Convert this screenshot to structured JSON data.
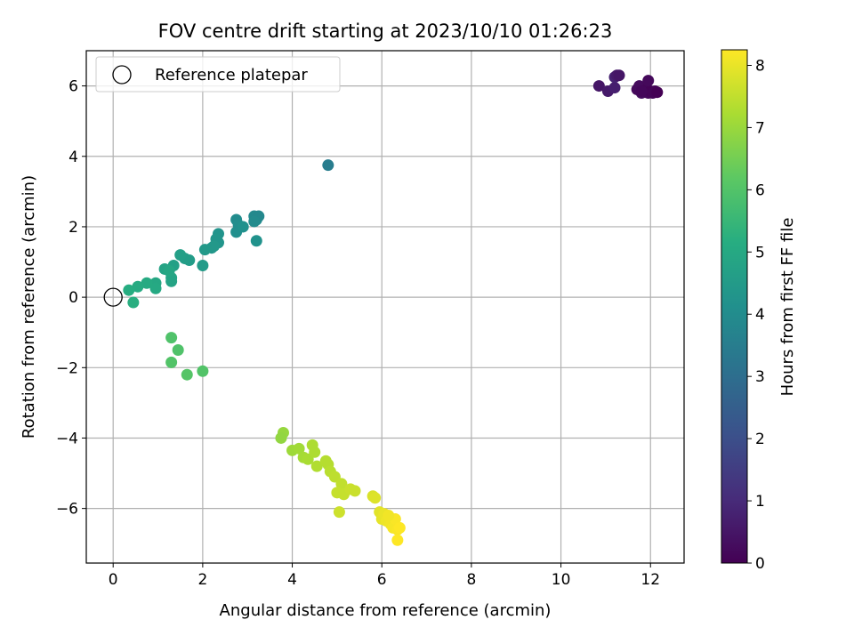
{
  "chart_data": {
    "type": "scatter",
    "title": "FOV centre drift starting at 2023/10/10 01:26:23",
    "xlabel": "Angular distance from reference (arcmin)",
    "ylabel": "Rotation from reference (arcmin)",
    "xlim": [
      -0.6,
      12.75
    ],
    "ylim": [
      -7.55,
      7.0
    ],
    "xticks": [
      0,
      2,
      4,
      6,
      8,
      10,
      12
    ],
    "yticks": [
      -6,
      -4,
      -2,
      0,
      2,
      4,
      6
    ],
    "grid": true,
    "legend": {
      "position": "top-left",
      "entries": [
        "Reference platepar"
      ]
    },
    "reference_point": {
      "x": 0,
      "y": 0
    },
    "colorbar": {
      "label": "Hours from first FF file",
      "range": [
        0,
        8.25
      ],
      "ticks": [
        0,
        1,
        2,
        3,
        4,
        5,
        6,
        7,
        8
      ],
      "colormap": "viridis"
    },
    "series": [
      {
        "x": [
          10.85,
          11.05,
          11.2,
          11.2,
          11.25,
          11.3,
          11.7,
          11.75,
          11.8,
          11.85,
          11.9,
          11.95,
          12.0,
          12.05,
          12.1,
          12.15,
          11.8,
          11.95,
          4.8,
          2.75,
          2.8,
          2.75,
          2.9,
          3.15,
          3.2,
          3.25,
          3.2,
          3.15,
          2.35,
          2.3,
          2.2,
          2.35,
          2.25,
          2.05,
          2.0,
          1.7,
          1.6,
          1.5,
          1.35,
          1.3,
          1.15,
          1.3,
          1.25,
          0.95,
          0.95,
          0.75,
          0.55,
          0.35,
          0.45,
          1.3,
          1.45,
          1.3,
          1.65,
          2.0,
          3.8,
          3.75,
          4.0,
          4.15,
          4.25,
          4.35,
          4.45,
          4.55,
          4.5,
          4.8,
          4.85,
          4.75,
          4.95,
          5.1,
          5.0,
          5.15,
          5.3,
          5.4,
          5.05,
          5.8,
          5.85,
          5.95,
          6.0,
          6.05,
          6.1,
          6.2,
          6.25,
          6.3,
          6.35,
          6.4,
          6.35,
          6.15
        ],
        "y": [
          6.0,
          5.85,
          5.95,
          6.25,
          6.3,
          6.3,
          5.9,
          6.0,
          5.8,
          5.85,
          5.9,
          5.8,
          5.85,
          5.8,
          5.85,
          5.82,
          5.85,
          6.15,
          3.75,
          2.2,
          2.05,
          1.85,
          2.0,
          2.3,
          2.2,
          2.3,
          1.6,
          2.15,
          1.8,
          1.65,
          1.4,
          1.55,
          1.45,
          1.35,
          0.9,
          1.05,
          1.1,
          1.2,
          0.9,
          0.45,
          0.8,
          0.55,
          0.75,
          0.4,
          0.25,
          0.4,
          0.3,
          0.2,
          -0.15,
          -1.15,
          -1.5,
          -1.85,
          -2.2,
          -2.1,
          -3.85,
          -4.0,
          -4.35,
          -4.3,
          -4.55,
          -4.6,
          -4.2,
          -4.8,
          -4.4,
          -4.75,
          -4.95,
          -4.65,
          -5.1,
          -5.3,
          -5.55,
          -5.6,
          -5.45,
          -5.5,
          -6.1,
          -5.65,
          -5.7,
          -6.1,
          -6.3,
          -6.15,
          -6.35,
          -6.45,
          -6.55,
          -6.3,
          -6.6,
          -6.55,
          -6.9,
          -6.2
        ],
        "hours": [
          0.5,
          0.6,
          0.7,
          0.8,
          0.6,
          0.5,
          0.2,
          0.25,
          0.3,
          0.35,
          0.1,
          0.15,
          0.05,
          0.1,
          0.1,
          0.0,
          0.15,
          0.2,
          3.5,
          4.0,
          4.05,
          4.1,
          4.15,
          3.9,
          3.95,
          3.85,
          4.2,
          3.95,
          4.25,
          4.3,
          4.35,
          4.3,
          4.4,
          4.45,
          4.5,
          4.55,
          4.6,
          4.65,
          4.7,
          4.8,
          4.8,
          4.85,
          4.9,
          4.95,
          5.0,
          5.05,
          5.1,
          5.15,
          5.2,
          5.95,
          5.95,
          6.0,
          6.05,
          6.0,
          6.95,
          6.9,
          7.05,
          7.1,
          7.15,
          7.2,
          7.25,
          7.3,
          7.25,
          7.35,
          7.4,
          7.35,
          7.45,
          7.5,
          7.55,
          7.55,
          7.6,
          7.6,
          7.65,
          7.8,
          7.85,
          7.9,
          7.95,
          8.0,
          8.05,
          8.1,
          8.15,
          8.2,
          8.2,
          8.25,
          8.25,
          8.1
        ]
      }
    ]
  }
}
